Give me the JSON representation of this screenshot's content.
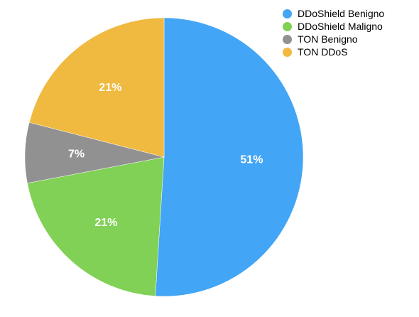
{
  "chart_data": {
    "type": "pie",
    "title": "",
    "categories": [
      "DDoShield Benigno",
      "DDoShield Maligno",
      "TON Benigno",
      "TON DDoS"
    ],
    "values": [
      51,
      21,
      7,
      21
    ],
    "labels": [
      "51%",
      "21%",
      "7%",
      "21%"
    ],
    "colors": [
      "#42a5f5",
      "#80d155",
      "#919191",
      "#f0b93f"
    ],
    "legend": "top-right",
    "start_angle": "12 o'clock",
    "direction": "clockwise"
  }
}
